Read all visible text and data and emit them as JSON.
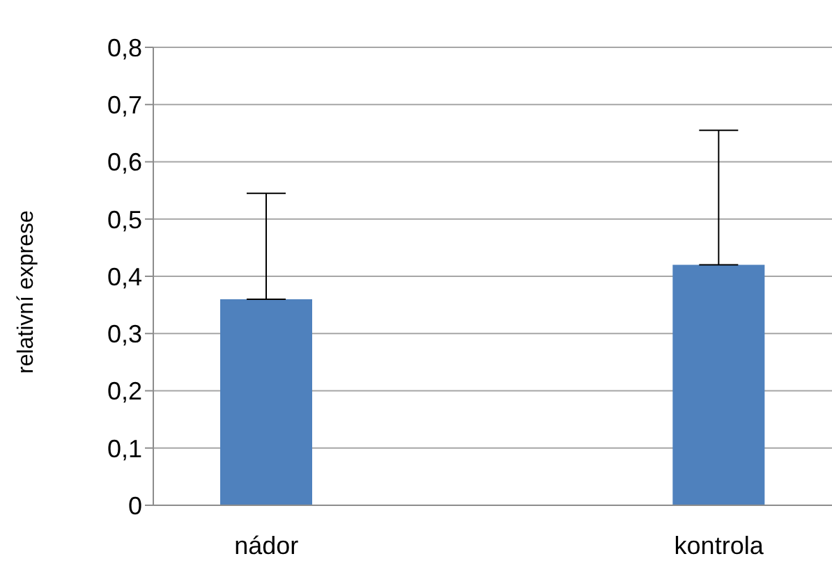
{
  "chart_data": {
    "type": "bar",
    "ylabel": "relativní exprese",
    "categories": [
      "nádor",
      null,
      "kontrola"
    ],
    "values": [
      0.36,
      null,
      0.42
    ],
    "color": "#4f81bd",
    "errors": [
      [
        0.36,
        0.545
      ],
      null,
      [
        0.42,
        0.655
      ]
    ],
    "ylim": [
      0,
      0.8
    ],
    "yticks": [
      {
        "value": 0,
        "label": "0"
      },
      {
        "value": 0.1,
        "label": "0,1"
      },
      {
        "value": 0.2,
        "label": "0,2"
      },
      {
        "value": 0.3,
        "label": "0,3"
      },
      {
        "value": 0.4,
        "label": "0,4"
      },
      {
        "value": 0.5,
        "label": "0,5"
      },
      {
        "value": 0.6,
        "label": "0,6"
      },
      {
        "value": 0.7,
        "label": "0,7"
      },
      {
        "value": 0.8,
        "label": "0,8"
      }
    ],
    "grid": "y",
    "legend": false
  }
}
